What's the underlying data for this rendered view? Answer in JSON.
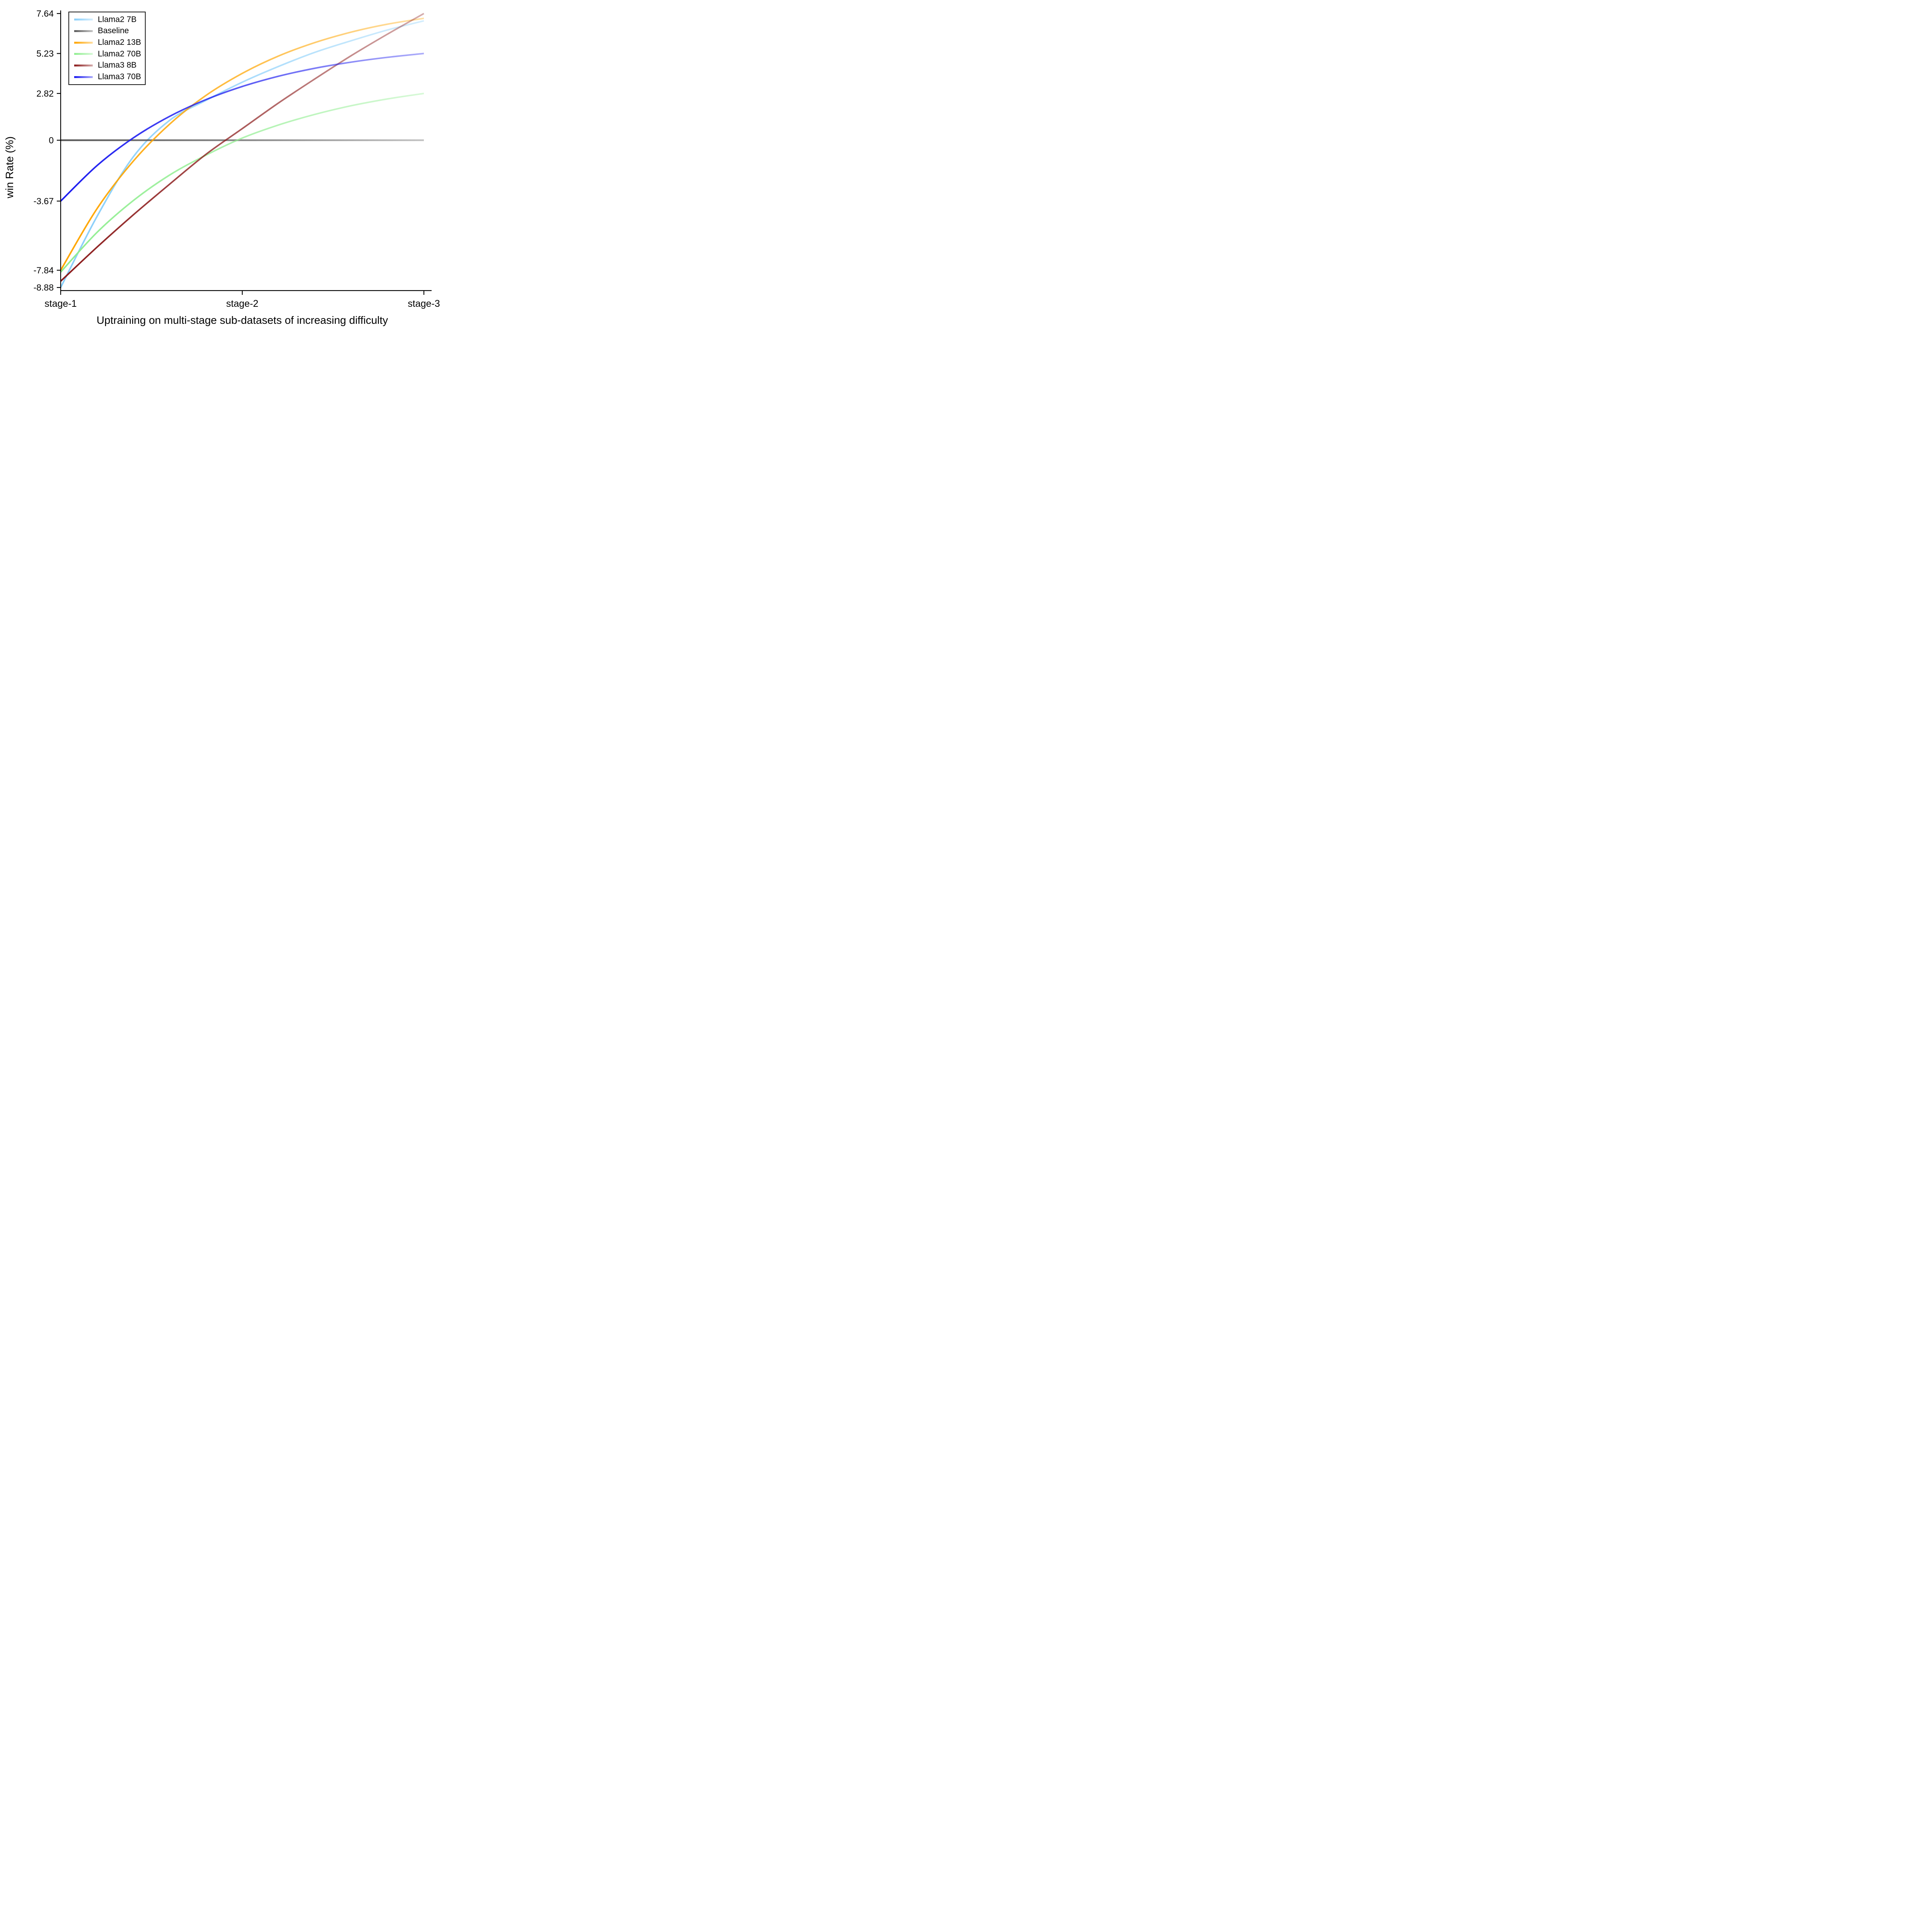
{
  "chart_data": {
    "type": "line",
    "title": "",
    "xlabel": "Uptraining on multi-stage sub-datasets of increasing difficulty",
    "ylabel": "win Rate (%)",
    "x_note": "x in stage units: 1 = stage-1, 2 = stage-2, 3 = stage-3",
    "x": [
      1,
      1.2,
      1.4,
      1.6,
      1.8,
      2,
      2.2,
      2.4,
      2.6,
      2.8,
      3
    ],
    "x_ticks": [
      1,
      2,
      3
    ],
    "x_tick_labels": [
      "stage-1",
      "stage-2",
      "stage-3"
    ],
    "y_ticks": [
      7.64,
      5.23,
      2.82,
      0,
      -3.67,
      -7.84,
      -8.88
    ],
    "y_tick_labels": [
      "7.64",
      "5.23",
      "2.82",
      "0",
      "-3.67",
      "-7.84",
      "-8.88"
    ],
    "ylim": [
      -9.4,
      8.1
    ],
    "grid": false,
    "legend_position": "upper left",
    "line_style": {
      "width": 4,
      "fade_right_opacity": 0.36
    },
    "series": [
      {
        "name": "Llama2 7B",
        "slug": "llama2-7b",
        "color": "#87CEFA",
        "values": [
          -8.88,
          -4.6,
          -1.0,
          1.2,
          2.4,
          3.5,
          4.45,
          5.3,
          6.0,
          6.65,
          7.2
        ]
      },
      {
        "name": "Baseline",
        "slug": "baseline",
        "color": "#5A5A5A",
        "values": [
          0,
          0,
          0,
          0,
          0,
          0,
          0,
          0,
          0,
          0,
          0
        ]
      },
      {
        "name": "Llama2 13B",
        "slug": "llama2-13b",
        "color": "#FFA500",
        "values": [
          -7.84,
          -4.13,
          -1.26,
          0.97,
          2.7,
          4.03,
          5.08,
          5.89,
          6.52,
          7.0,
          7.35
        ]
      },
      {
        "name": "Llama2 70B",
        "slug": "llama2-70b",
        "color": "#90EE90",
        "values": [
          -7.95,
          -5.56,
          -3.64,
          -2.1,
          -0.9,
          0.13,
          0.92,
          1.56,
          2.08,
          2.49,
          2.82
        ]
      },
      {
        "name": "Llama3 8B",
        "slug": "llama3-8b",
        "color": "#8B1A1A",
        "values": [
          -8.5,
          -6.45,
          -4.5,
          -2.65,
          -0.85,
          0.7,
          2.25,
          3.7,
          5.1,
          6.4,
          7.64
        ]
      },
      {
        "name": "Llama3 70B",
        "slug": "llama3-70b",
        "color": "#1A1AF0",
        "values": [
          -3.67,
          -1.53,
          0.14,
          1.44,
          2.45,
          3.24,
          3.86,
          4.34,
          4.71,
          5.0,
          5.23
        ]
      }
    ]
  }
}
